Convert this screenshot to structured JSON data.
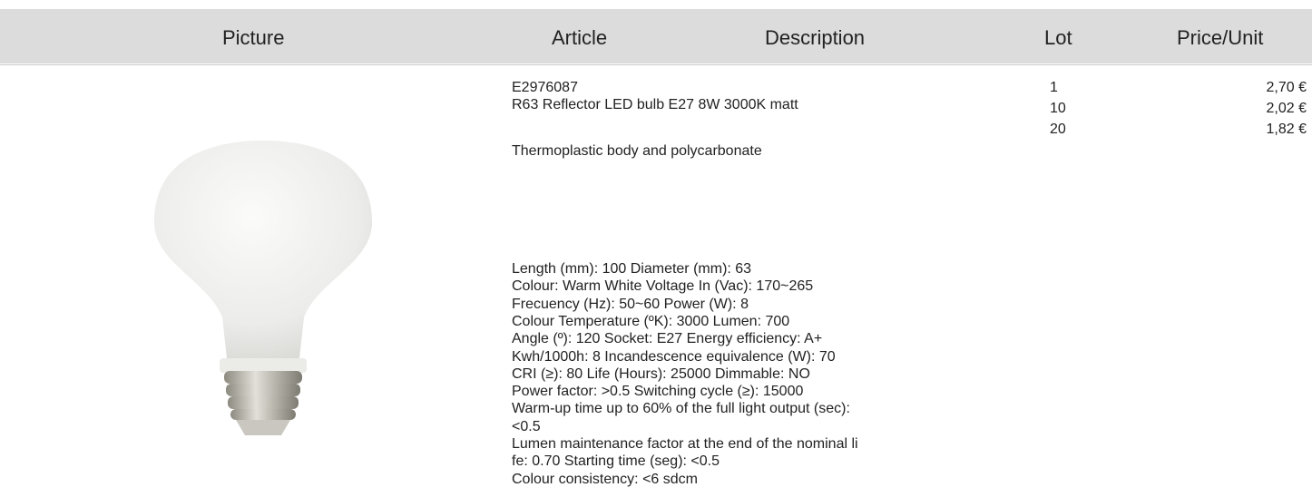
{
  "header": {
    "columns": [
      "Picture",
      "Article",
      "Description",
      "Lot",
      "Price/Unit"
    ]
  },
  "product": {
    "article": "E2976087",
    "name": "R63 Reflector LED bulb E27 8W 3000K matt",
    "material": "Thermoplastic body and polycarbonate",
    "specs": [
      "Length (mm): 100 Diameter (mm): 63",
      "Colour: Warm White Voltage In (Vac): 170~265",
      "Frecuency (Hz): 50~60 Power (W): 8",
      "Colour Temperature (ºK): 3000 Lumen: 700",
      "Angle (º): 120 Socket: E27 Energy efficiency: A+",
      "Kwh/1000h: 8 Incandescence equivalence (W): 70",
      "CRI (≥): 80 Life (Hours): 25000 Dimmable: NO",
      "Power factor: >0.5 Switching cycle (≥): 15000",
      "Warm-up time up to 60% of the full light output (sec):",
      "<0.5",
      "Lumen maintenance factor at the end of the nominal li",
      "fe: 0.70 Starting time (seg): <0.5",
      "Colour consistency: <6 sdcm"
    ]
  },
  "prices": [
    {
      "lot": 1,
      "price": "2,70 €"
    },
    {
      "lot": 10,
      "price": "2,02 €"
    },
    {
      "lot": 20,
      "price": "1,82 €"
    }
  ]
}
